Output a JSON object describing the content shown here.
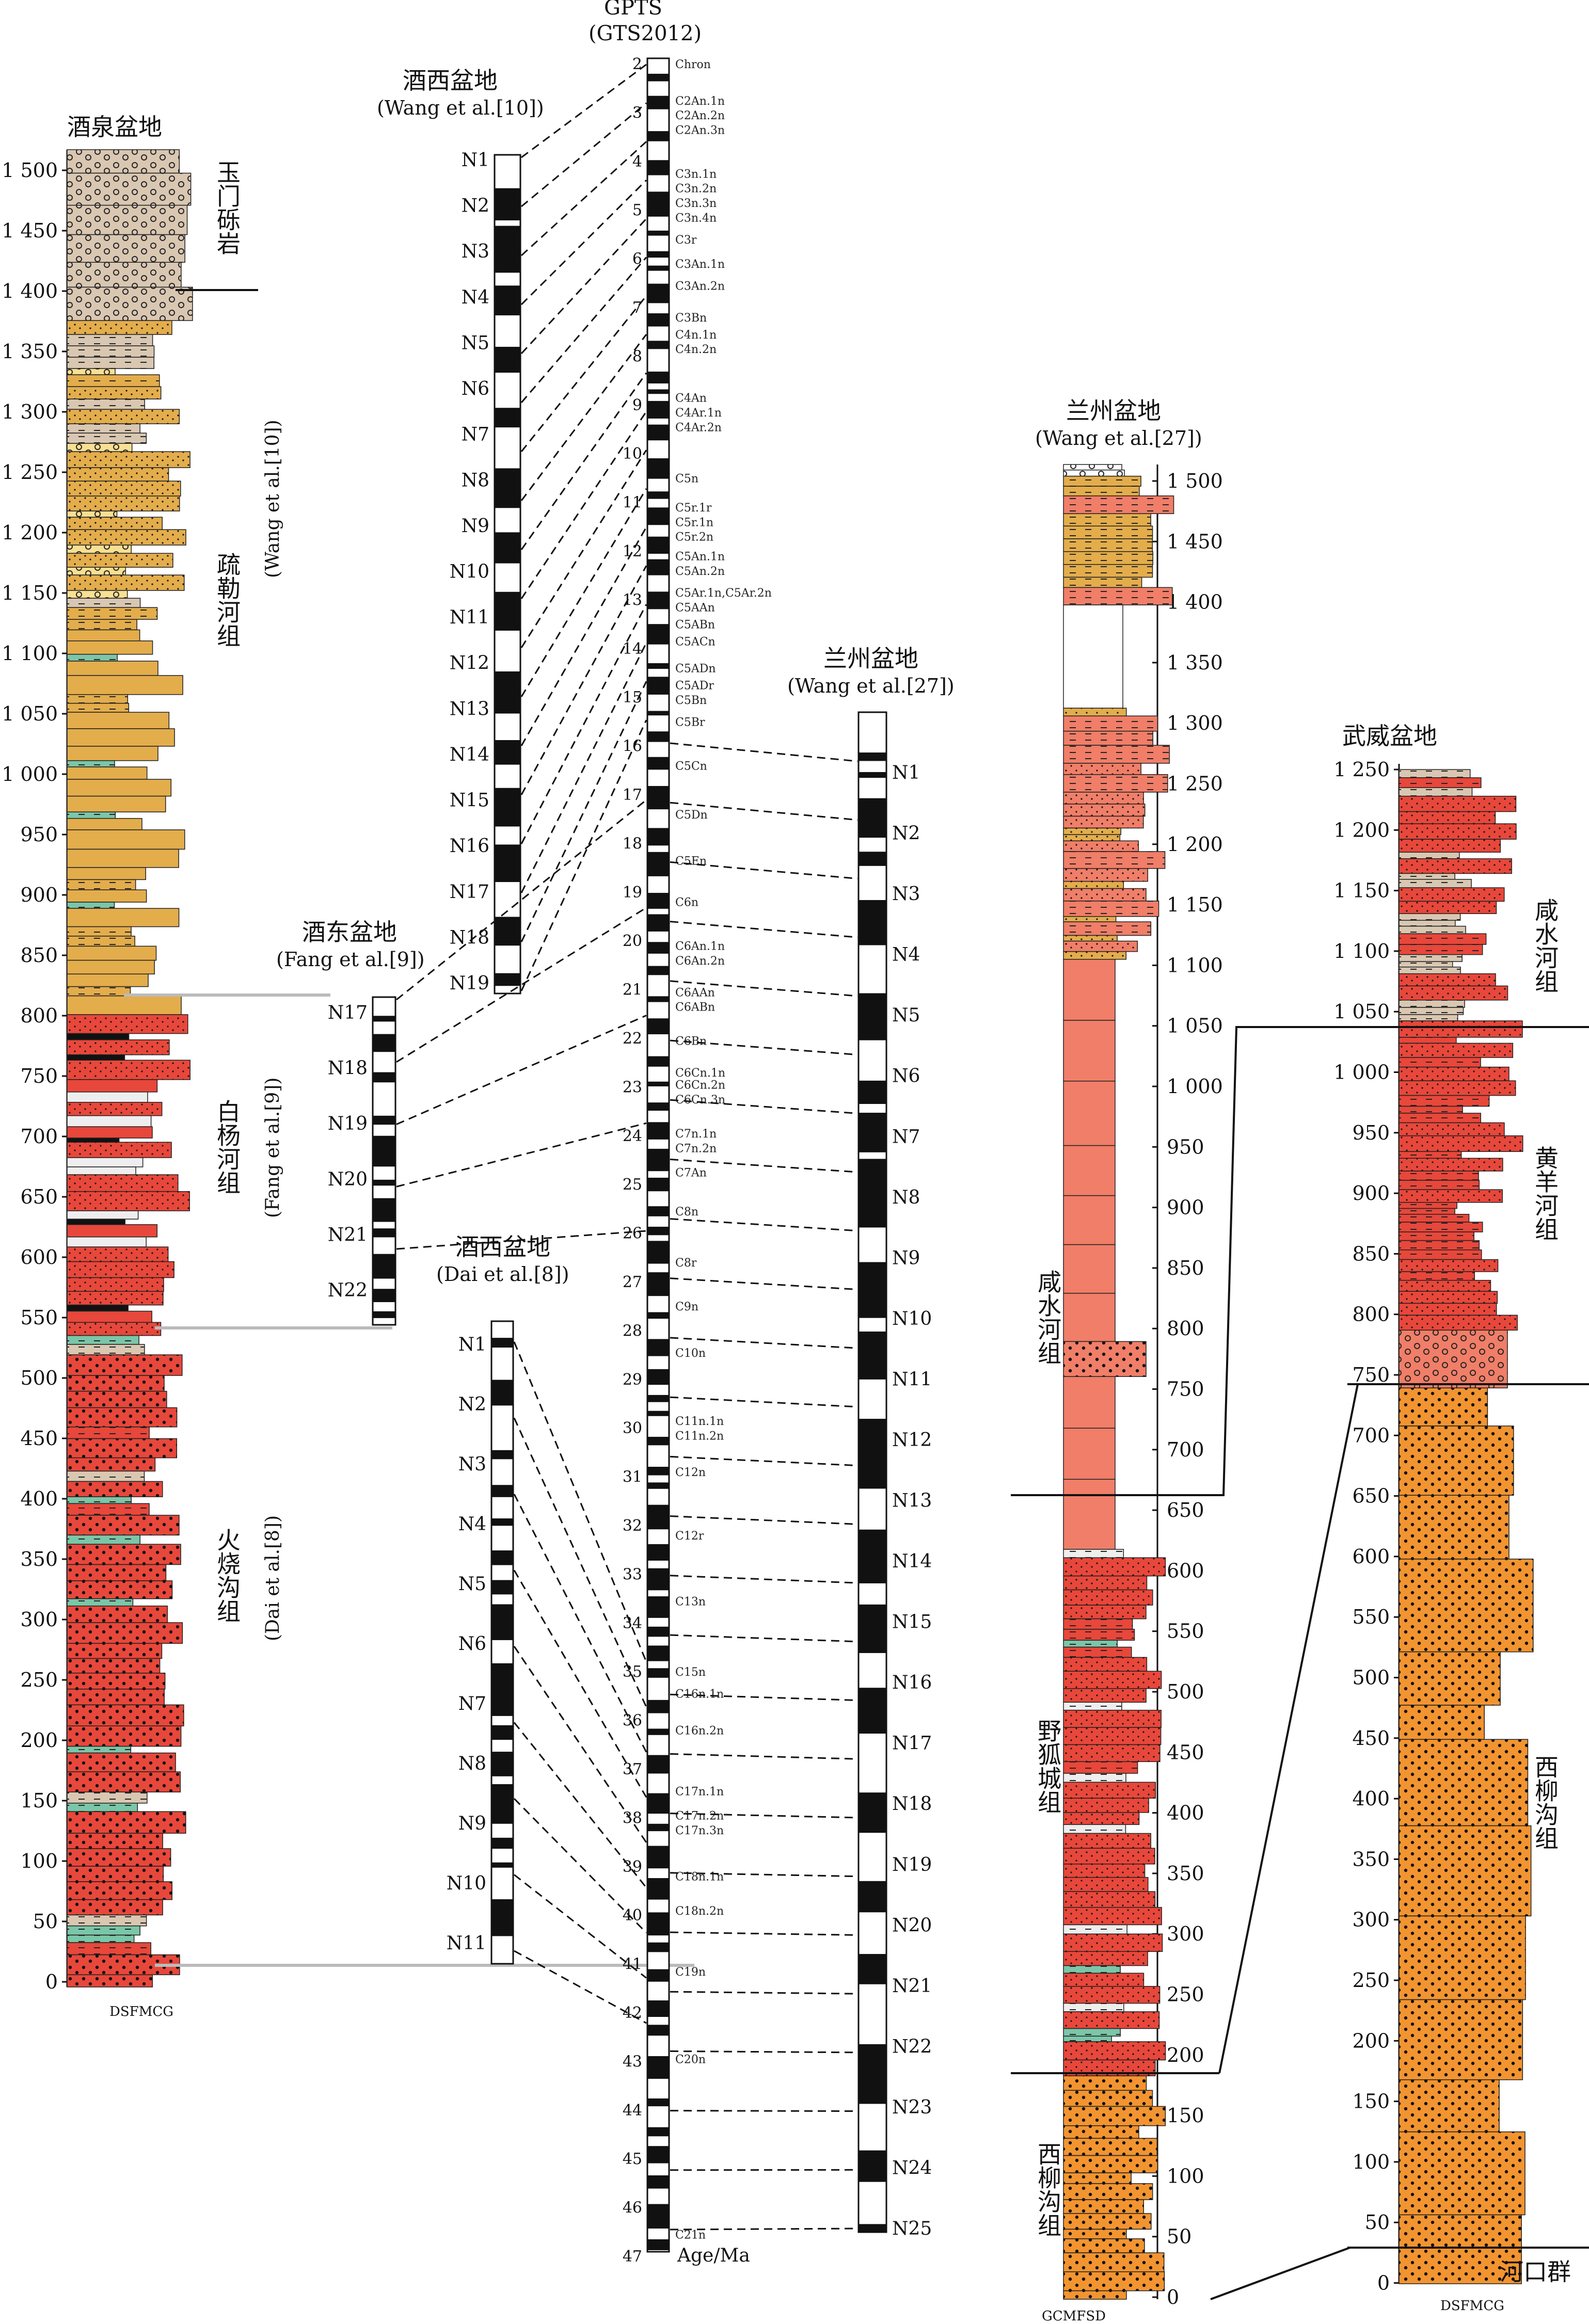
{
  "gpts": {
    "title": "GPTS",
    "subtitle": "(GTS2012)",
    "ages": [
      2,
      3,
      4,
      5,
      6,
      7,
      8,
      9,
      10,
      11,
      12,
      13,
      14,
      15,
      16,
      17,
      18,
      19,
      20,
      21,
      22,
      23,
      24,
      25,
      26,
      27,
      28,
      29,
      30,
      31,
      32,
      33,
      34,
      35,
      36,
      37,
      38,
      39,
      40,
      41,
      42,
      43,
      44,
      45,
      46,
      47
    ],
    "age_label": "Age/Ma",
    "chrons": [
      {
        "label": "Chron",
        "age": 2.0
      },
      {
        "label": "C2An.1n",
        "age": 2.75
      },
      {
        "label": "C2An.2n",
        "age": 3.05
      },
      {
        "label": "C2An.3n",
        "age": 3.35
      },
      {
        "label": "C3n.1n",
        "age": 4.25
      },
      {
        "label": "C3n.2n",
        "age": 4.55
      },
      {
        "label": "C3n.3n",
        "age": 4.85
      },
      {
        "label": "C3n.4n",
        "age": 5.15
      },
      {
        "label": "C3r",
        "age": 5.6
      },
      {
        "label": "C3An.1n",
        "age": 6.1
      },
      {
        "label": "C3An.2n",
        "age": 6.55
      },
      {
        "label": "C3Bn",
        "age": 7.2
      },
      {
        "label": "C4n.1n",
        "age": 7.55
      },
      {
        "label": "C4n.2n",
        "age": 7.85
      },
      {
        "label": "C4An",
        "age": 8.85
      },
      {
        "label": "C4Ar.1n",
        "age": 9.15
      },
      {
        "label": "C4Ar.2n",
        "age": 9.45
      },
      {
        "label": "C5n",
        "age": 10.5
      },
      {
        "label": "C5r.1r",
        "age": 11.1
      },
      {
        "label": "C5r.1n",
        "age": 11.4
      },
      {
        "label": "C5r.2n",
        "age": 11.7
      },
      {
        "label": "C5An.1n",
        "age": 12.1
      },
      {
        "label": "C5An.2n",
        "age": 12.4
      },
      {
        "label": "C5Ar.1n,C5Ar.2n",
        "age": 12.85
      },
      {
        "label": "C5AAn",
        "age": 13.15
      },
      {
        "label": "C5ABn",
        "age": 13.5
      },
      {
        "label": "C5ACn",
        "age": 13.85
      },
      {
        "label": "C5ADn",
        "age": 14.4
      },
      {
        "label": "C5ADr",
        "age": 14.75
      },
      {
        "label": "C5Bn",
        "age": 15.05
      },
      {
        "label": "C5Br",
        "age": 15.5
      },
      {
        "label": "C5Cn",
        "age": 16.4
      },
      {
        "label": "C5Dn",
        "age": 17.4
      },
      {
        "label": "C5En",
        "age": 18.35
      },
      {
        "label": "C6n",
        "age": 19.2
      },
      {
        "label": "C6An.1n",
        "age": 20.1
      },
      {
        "label": "C6An.2n",
        "age": 20.4
      },
      {
        "label": "C6AAn",
        "age": 21.05
      },
      {
        "label": "C6ABn",
        "age": 21.35
      },
      {
        "label": "C6Bn",
        "age": 22.05
      },
      {
        "label": "C6Cn.1n",
        "age": 22.7
      },
      {
        "label": "C6Cn.2n",
        "age": 22.95
      },
      {
        "label": "C6Cn.3n",
        "age": 23.25
      },
      {
        "label": "C7n.1n",
        "age": 23.95
      },
      {
        "label": "C7n.2n",
        "age": 24.25
      },
      {
        "label": "C7An",
        "age": 24.75
      },
      {
        "label": "C8n",
        "age": 25.55
      },
      {
        "label": "C8r",
        "age": 26.6
      },
      {
        "label": "C9n",
        "age": 27.5
      },
      {
        "label": "C10n",
        "age": 28.45
      },
      {
        "label": "C11n.1n",
        "age": 29.85
      },
      {
        "label": "C11n.2n",
        "age": 30.15
      },
      {
        "label": "C12n",
        "age": 30.9
      },
      {
        "label": "C12r",
        "age": 32.2
      },
      {
        "label": "C13n",
        "age": 33.55
      },
      {
        "label": "C15n",
        "age": 35.0
      },
      {
        "label": "C16n.1n",
        "age": 35.45
      },
      {
        "label": "C16n.2n",
        "age": 36.2
      },
      {
        "label": "C17n.1n",
        "age": 37.45
      },
      {
        "label": "C17n.2n",
        "age": 37.95
      },
      {
        "label": "C17n.3n",
        "age": 38.25
      },
      {
        "label": "C18n.1n",
        "age": 39.2
      },
      {
        "label": "C18n.2n",
        "age": 39.9
      },
      {
        "label": "C19n",
        "age": 41.15
      },
      {
        "label": "C20n",
        "age": 42.95
      },
      {
        "label": "C21n",
        "age": 46.55
      }
    ]
  },
  "jiuquan": {
    "title": "酒泉盆地",
    "grain": "DSFMCG",
    "ticks": [
      "1 500",
      "1 450",
      "1 400",
      "1 350",
      "1 300",
      "1 250",
      "1 200",
      "1 150",
      "1 100",
      "1 050",
      "1 000",
      "950",
      "900",
      "850",
      "800",
      "750",
      "700",
      "650",
      "600",
      "550",
      "500",
      "450",
      "400",
      "350",
      "300",
      "250",
      "200",
      "150",
      "100",
      "50",
      "0"
    ],
    "units": [
      {
        "name": "玉门砾岩",
        "ref": ""
      },
      {
        "name": "疏勒河组",
        "ref": "(Wang et al.[10])"
      },
      {
        "name": "白杨河组",
        "ref": "(Fang et al.[9])"
      },
      {
        "name": "火烧沟组",
        "ref": "(Dai et al.[8])"
      }
    ]
  },
  "jiuxi_wang": {
    "title": "酒西盆地",
    "ref": "(Wang et al.[10])",
    "labels": [
      "N1",
      "N2",
      "N3",
      "N4",
      "N5",
      "N6",
      "N7",
      "N8",
      "N9",
      "N10",
      "N11",
      "N12",
      "N13",
      "N14",
      "N15",
      "N16",
      "N17",
      "N18",
      "N19"
    ]
  },
  "jiudong_fang": {
    "title": "酒东盆地",
    "ref": "(Fang et al.[9])",
    "labels": [
      "N17",
      "N18",
      "N19",
      "N20",
      "N21",
      "N22"
    ]
  },
  "jiuxi_dai": {
    "title": "酒西盆地",
    "ref": "(Dai et al.[8])",
    "labels": [
      "N1",
      "N2",
      "N3",
      "N4",
      "N5",
      "N6",
      "N7",
      "N8",
      "N9",
      "N10",
      "N11"
    ]
  },
  "lanzhou_mag": {
    "title": "兰州盆地",
    "ref": "(Wang et al.[27])",
    "labels": [
      "N1",
      "N2",
      "N3",
      "N4",
      "N5",
      "N6",
      "N7",
      "N8",
      "N9",
      "N10",
      "N11",
      "N12",
      "N13",
      "N14",
      "N15",
      "N16",
      "N17",
      "N18",
      "N19",
      "N20",
      "N21",
      "N22",
      "N23",
      "N24",
      "N25"
    ]
  },
  "lanzhou_strat": {
    "title": "兰州盆地",
    "ref": "(Wang et al.[27])",
    "grain": "GCMFSD",
    "ticks": [
      "1 500",
      "1 450",
      "1 400",
      "1 350",
      "1 300",
      "1 250",
      "1 200",
      "1 150",
      "1 100",
      "1 050",
      "1 000",
      "950",
      "900",
      "850",
      "800",
      "750",
      "700",
      "650",
      "600",
      "550",
      "500",
      "450",
      "400",
      "350",
      "300",
      "250",
      "200",
      "150",
      "100",
      "50",
      "0"
    ],
    "units": [
      "咸水河组",
      "野狐城组",
      "西柳沟组"
    ]
  },
  "wuwei": {
    "title": "武威盆地",
    "grain": "DSFMCG",
    "ticks": [
      "1 250",
      "1 200",
      "1 150",
      "1 100",
      "1 050",
      "1 000",
      "950",
      "900",
      "850",
      "800",
      "750",
      "700",
      "650",
      "600",
      "550",
      "500",
      "450",
      "400",
      "350",
      "300",
      "250",
      "200",
      "150",
      "100",
      "50",
      "0"
    ],
    "units": [
      "咸水河组",
      "黄羊河组",
      "西柳沟组",
      "河口群"
    ]
  },
  "colors": {
    "ochre": "#e3ad4c",
    "red": "#e8473b",
    "salmon": "#f07e68",
    "tan": "#d9c7b2",
    "orange": "#f29430",
    "cream": "#f7df93",
    "green": "#7bc6a8",
    "purple": "#7d3a7d",
    "grey": "#c8c8c8"
  }
}
